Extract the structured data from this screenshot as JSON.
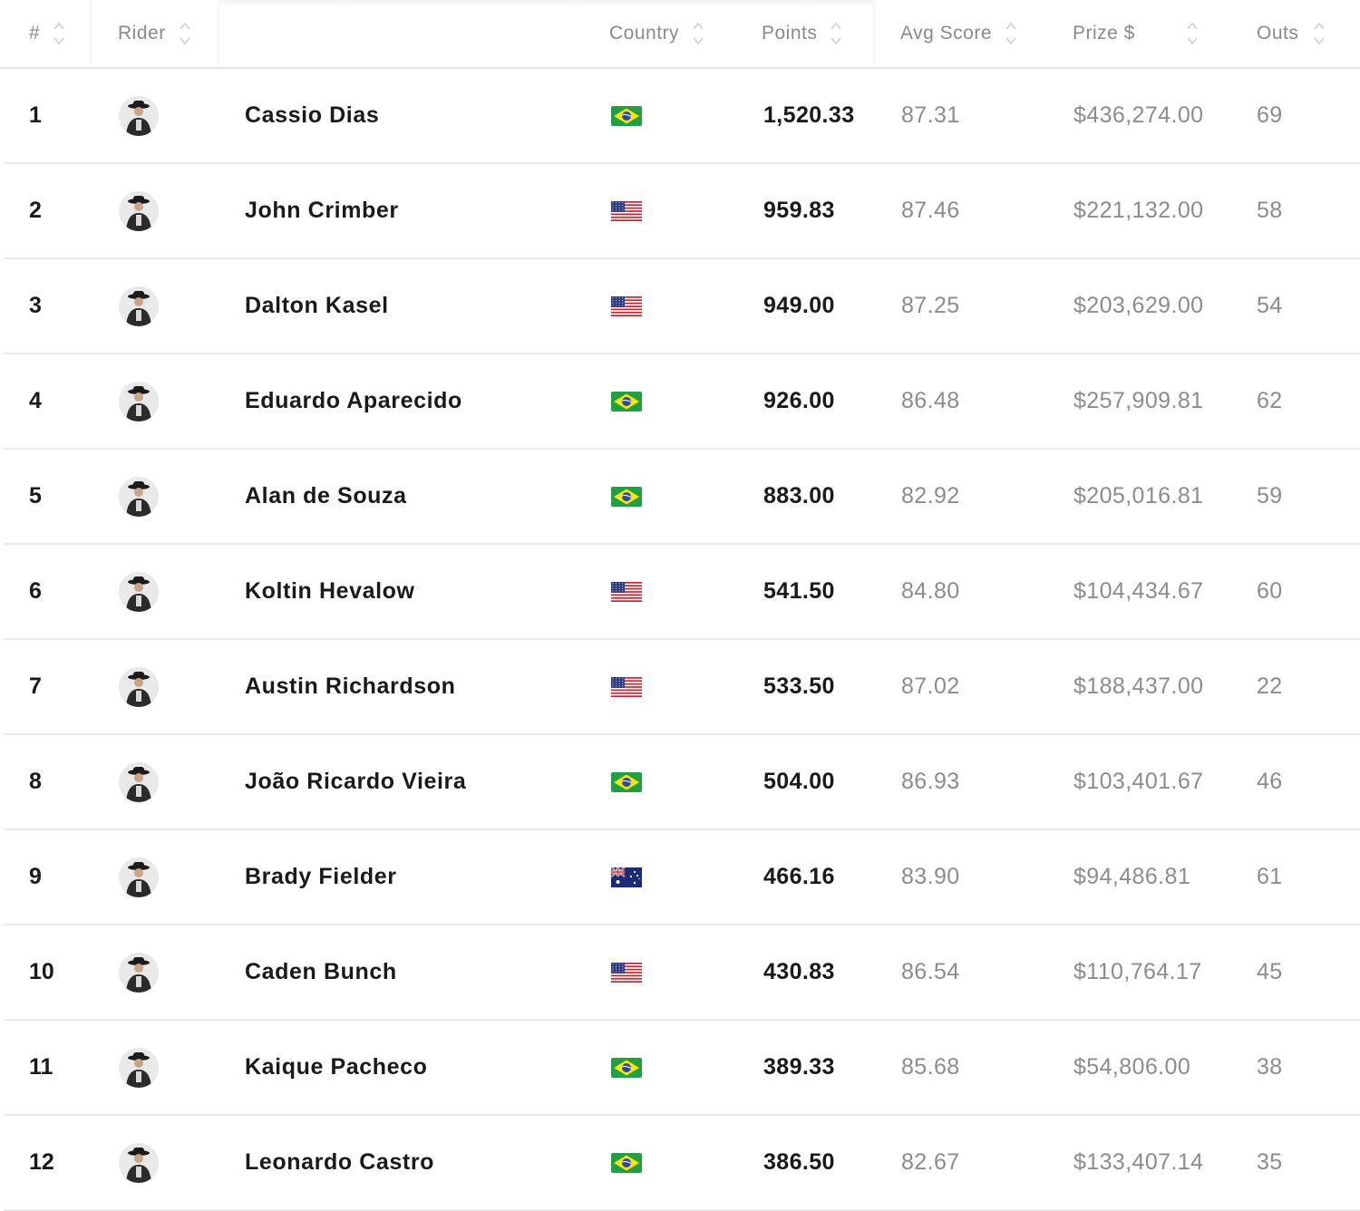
{
  "header": {
    "rank": "#",
    "rider": "Rider",
    "country": "Country",
    "points": "Points",
    "avg_score": "Avg Score",
    "prize": "Prize $",
    "outs": "Outs"
  },
  "colors": {
    "header_text": "#8a8a8a",
    "muted_value": "#8c8c8c",
    "strong_value": "#1a1a1a",
    "divider": "#e9e9e9"
  },
  "rows": [
    {
      "rank": "1",
      "name": "Cassio Dias",
      "country": "brazil-flag-icon",
      "points": "1,520.33",
      "avg": "87.31",
      "prize": "$436,274.00",
      "outs": "69"
    },
    {
      "rank": "2",
      "name": "John Crimber",
      "country": "usa-flag-icon",
      "points": "959.83",
      "avg": "87.46",
      "prize": "$221,132.00",
      "outs": "58"
    },
    {
      "rank": "3",
      "name": "Dalton Kasel",
      "country": "usa-flag-icon",
      "points": "949.00",
      "avg": "87.25",
      "prize": "$203,629.00",
      "outs": "54"
    },
    {
      "rank": "4",
      "name": "Eduardo Aparecido",
      "country": "brazil-flag-icon",
      "points": "926.00",
      "avg": "86.48",
      "prize": "$257,909.81",
      "outs": "62"
    },
    {
      "rank": "5",
      "name": "Alan de Souza",
      "country": "brazil-flag-icon",
      "points": "883.00",
      "avg": "82.92",
      "prize": "$205,016.81",
      "outs": "59"
    },
    {
      "rank": "6",
      "name": "Koltin Hevalow",
      "country": "usa-flag-icon",
      "points": "541.50",
      "avg": "84.80",
      "prize": "$104,434.67",
      "outs": "60"
    },
    {
      "rank": "7",
      "name": "Austin Richardson",
      "country": "usa-flag-icon",
      "points": "533.50",
      "avg": "87.02",
      "prize": "$188,437.00",
      "outs": "22"
    },
    {
      "rank": "8",
      "name": "João Ricardo Vieira",
      "country": "brazil-flag-icon",
      "points": "504.00",
      "avg": "86.93",
      "prize": "$103,401.67",
      "outs": "46"
    },
    {
      "rank": "9",
      "name": "Brady Fielder",
      "country": "australia-flag-icon",
      "points": "466.16",
      "avg": "83.90",
      "prize": "$94,486.81",
      "outs": "61"
    },
    {
      "rank": "10",
      "name": "Caden Bunch",
      "country": "usa-flag-icon",
      "points": "430.83",
      "avg": "86.54",
      "prize": "$110,764.17",
      "outs": "45"
    },
    {
      "rank": "11",
      "name": "Kaique Pacheco",
      "country": "brazil-flag-icon",
      "points": "389.33",
      "avg": "85.68",
      "prize": "$54,806.00",
      "outs": "38"
    },
    {
      "rank": "12",
      "name": "Leonardo Castro",
      "country": "brazil-flag-icon",
      "points": "386.50",
      "avg": "82.67",
      "prize": "$133,407.14",
      "outs": "35"
    }
  ]
}
